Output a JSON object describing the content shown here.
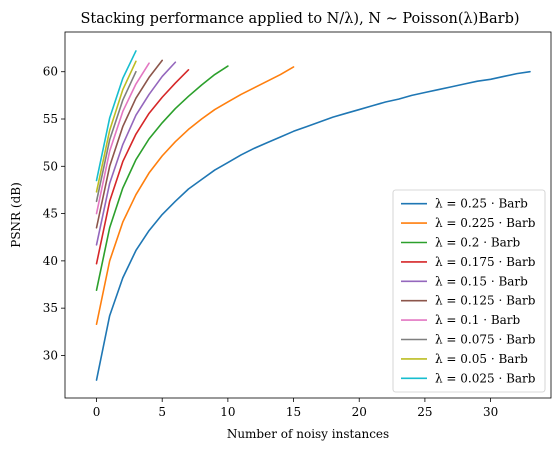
{
  "chart_data": {
    "type": "line",
    "title": "Stacking performance applied to N/λ), N ∼ Poisson(λ)Barb)",
    "xlabel": "Number of noisy instances",
    "ylabel": "PSNR (dB)",
    "xlim": [
      -2.4,
      34.6
    ],
    "ylim": [
      25.5,
      64.2
    ],
    "xticks": [
      0,
      5,
      10,
      15,
      20,
      25,
      30
    ],
    "yticks": [
      30,
      35,
      40,
      45,
      50,
      55,
      60
    ],
    "grid": false,
    "legend_position": "lower-right",
    "series": [
      {
        "name": "λ = 0.25 · Barb",
        "color": "#1f77b4",
        "x": [
          0,
          1,
          2,
          3,
          4,
          5,
          6,
          7,
          8,
          9,
          10,
          11,
          12,
          13,
          14,
          15,
          16,
          17,
          18,
          19,
          20,
          21,
          22,
          23,
          24,
          25,
          26,
          27,
          28,
          29,
          30,
          31,
          32,
          33
        ],
        "y": [
          27.4,
          34.2,
          38.2,
          41.1,
          43.2,
          44.9,
          46.3,
          47.6,
          48.6,
          49.6,
          50.4,
          51.2,
          51.9,
          52.5,
          53.1,
          53.7,
          54.2,
          54.7,
          55.2,
          55.6,
          56.0,
          56.4,
          56.8,
          57.1,
          57.5,
          57.8,
          58.1,
          58.4,
          58.7,
          59.0,
          59.2,
          59.5,
          59.8,
          60.0
        ]
      },
      {
        "name": "λ = 0.225 · Barb",
        "color": "#ff7f0e",
        "x": [
          0,
          1,
          2,
          3,
          4,
          5,
          6,
          7,
          8,
          9,
          10,
          11,
          12,
          13,
          14,
          15
        ],
        "y": [
          33.3,
          40.0,
          44.1,
          47.0,
          49.3,
          51.1,
          52.6,
          53.9,
          55.0,
          56.0,
          56.8,
          57.6,
          58.3,
          59.0,
          59.7,
          60.5
        ]
      },
      {
        "name": "λ = 0.2 · Barb",
        "color": "#2ca02c",
        "x": [
          0,
          1,
          2,
          3,
          4,
          5,
          6,
          7,
          8,
          9,
          10
        ],
        "y": [
          36.9,
          43.5,
          47.7,
          50.7,
          52.9,
          54.6,
          56.1,
          57.4,
          58.6,
          59.7,
          60.6
        ]
      },
      {
        "name": "λ = 0.175 · Barb",
        "color": "#d62728",
        "x": [
          0,
          1,
          2,
          3,
          4,
          5,
          6,
          7
        ],
        "y": [
          39.7,
          46.3,
          50.5,
          53.4,
          55.6,
          57.3,
          58.8,
          60.2
        ]
      },
      {
        "name": "λ = 0.15 · Barb",
        "color": "#9467bd",
        "x": [
          0,
          1,
          2,
          3,
          4,
          5,
          6
        ],
        "y": [
          41.7,
          48.2,
          52.3,
          55.4,
          57.6,
          59.5,
          61.0
        ]
      },
      {
        "name": "λ = 0.125 · Barb",
        "color": "#8c564b",
        "x": [
          0,
          1,
          2,
          3,
          4,
          5
        ],
        "y": [
          43.5,
          50.0,
          54.2,
          57.2,
          59.4,
          61.2
        ]
      },
      {
        "name": "λ = 0.1 · Barb",
        "color": "#e377c2",
        "x": [
          0,
          1,
          2,
          3,
          4
        ],
        "y": [
          45.0,
          51.6,
          55.8,
          58.7,
          60.9
        ]
      },
      {
        "name": "λ = 0.075 · Barb",
        "color": "#7f7f7f",
        "x": [
          0,
          1,
          2,
          3
        ],
        "y": [
          46.3,
          52.8,
          57.0,
          60.0
        ]
      },
      {
        "name": "λ = 0.05 · Barb",
        "color": "#bcbd22",
        "x": [
          0,
          1,
          2,
          3
        ],
        "y": [
          47.3,
          53.8,
          58.1,
          61.1
        ]
      },
      {
        "name": "λ = 0.025 · Barb",
        "color": "#17becf",
        "x": [
          0,
          1,
          2,
          3
        ],
        "y": [
          48.5,
          55.1,
          59.3,
          62.2
        ]
      }
    ]
  }
}
